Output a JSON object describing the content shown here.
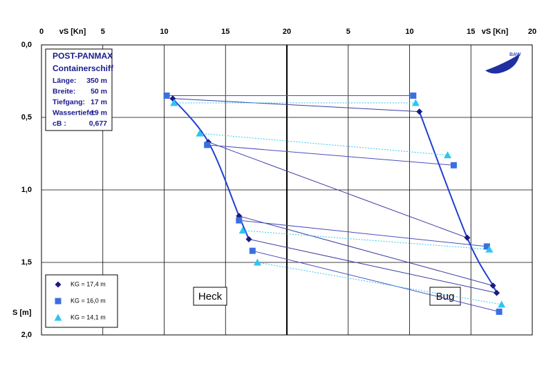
{
  "chart_data": {
    "type": "scatter",
    "xlabel": "vS [Kn]",
    "ylabel": "S [m]",
    "ylim": [
      0,
      2.0
    ],
    "yticks": [
      {
        "value": 0,
        "label": "0,0"
      },
      {
        "value": 0.5,
        "label": "0,5"
      },
      {
        "value": 1.0,
        "label": "1,0"
      },
      {
        "value": 1.5,
        "label": "1,5"
      },
      {
        "value": 2.0,
        "label": "2,0"
      }
    ],
    "grid": true,
    "panels": [
      {
        "name": "Heck",
        "key": "heck",
        "xlim": [
          0,
          20
        ],
        "xticks": [
          0,
          5,
          10,
          15,
          20
        ]
      },
      {
        "name": "Bug",
        "key": "bug",
        "xlim": [
          0,
          20
        ],
        "xticks": [
          5,
          10,
          15,
          20
        ]
      }
    ],
    "info": {
      "title": "POST-PANMAX",
      "subtitle": "Containerschiff",
      "rows": [
        [
          "Länge:",
          "350 m"
        ],
        [
          "Breite:",
          "50 m"
        ],
        [
          "Tiefgang:",
          "17 m"
        ],
        [
          "Wassertiefe:",
          "19 m"
        ],
        [
          "cB :",
          "0,677"
        ]
      ]
    },
    "logo": "BAW",
    "series": [
      {
        "name": "KG = 17,4 m",
        "color": "#1a1a80",
        "marker": "diamond",
        "line": "solid",
        "line_color": "#3a3aa0",
        "heck_x": [
          10.7,
          13.6,
          16.1,
          16.9
        ],
        "heck_y": [
          0.37,
          0.67,
          1.18,
          1.34
        ],
        "bug_x": [
          10.8,
          14.7,
          16.8,
          17.1
        ],
        "bug_y": [
          0.46,
          1.33,
          1.66,
          1.71
        ]
      },
      {
        "name": "KG = 16,0 m",
        "color": "#3a6fe0",
        "marker": "square",
        "line": "solid",
        "line_color": "#4a4ac0",
        "heck_x": [
          10.2,
          13.5,
          16.1,
          17.2
        ],
        "heck_y": [
          0.35,
          0.69,
          1.21,
          1.42
        ],
        "bug_x": [
          10.3,
          13.6,
          16.3,
          17.3
        ],
        "bug_y": [
          0.35,
          0.83,
          1.39,
          1.84
        ]
      },
      {
        "name": "KG = 14,1 m",
        "color": "#2cc6f0",
        "marker": "triangle",
        "line": "dotted",
        "line_color": "#2cc6f0",
        "heck_x": [
          10.8,
          12.9,
          16.4,
          17.6
        ],
        "heck_y": [
          0.4,
          0.61,
          1.28,
          1.5
        ],
        "bug_x": [
          10.5,
          13.1,
          16.5,
          17.5
        ],
        "bug_y": [
          0.4,
          0.76,
          1.41,
          1.79
        ]
      }
    ]
  }
}
